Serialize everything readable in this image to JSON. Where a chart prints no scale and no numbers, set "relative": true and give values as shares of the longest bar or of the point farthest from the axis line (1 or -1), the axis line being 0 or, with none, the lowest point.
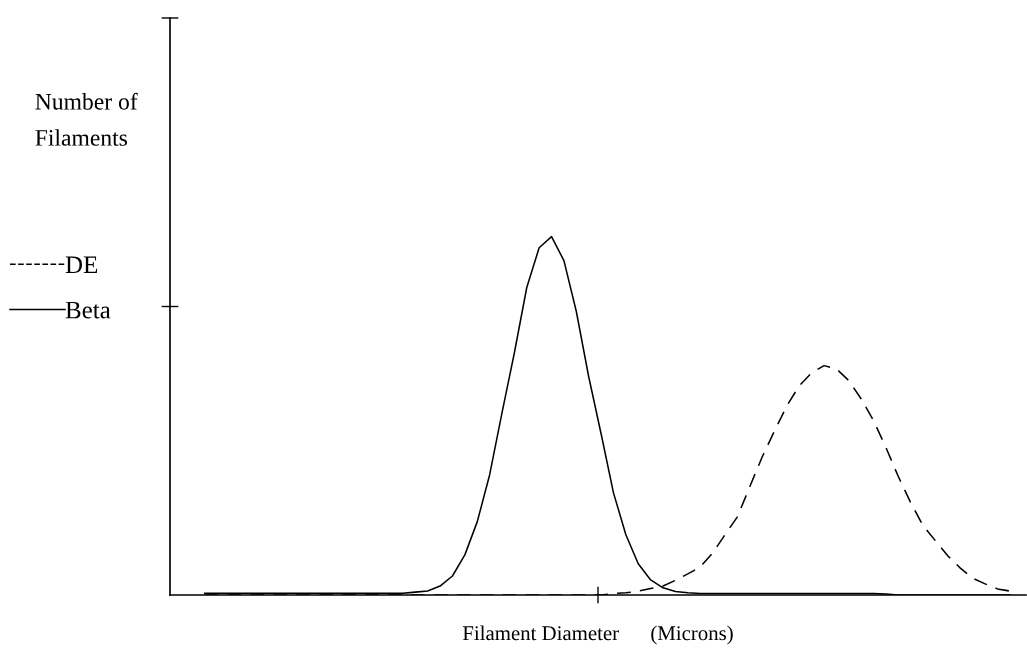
{
  "chart_data": {
    "type": "line",
    "relative": true,
    "xlabel": "Filament Diameter      (Microns)",
    "ylabel": "Number of\nFilaments",
    "legend": "left",
    "marker": "none",
    "categories": [
      null,
      null,
      null,
      null,
      null,
      null,
      null,
      null,
      null,
      null,
      null,
      null,
      null,
      null,
      null,
      null,
      null,
      null,
      null,
      null,
      null,
      null,
      null,
      null,
      null,
      null,
      null,
      null,
      null,
      null,
      null,
      null,
      null,
      null,
      null,
      null,
      null,
      null,
      null,
      null,
      null,
      null,
      null,
      null,
      null,
      null,
      null,
      null,
      null,
      null,
      null,
      null,
      null,
      null,
      null,
      null,
      null,
      null,
      null,
      null,
      null,
      null,
      null,
      null,
      null,
      null
    ],
    "series": [
      {
        "name": "DE",
        "color": "#000000",
        "line_style": "dashed",
        "values": [
          0,
          0,
          0,
          0,
          0,
          0,
          0,
          0,
          0,
          0,
          0,
          0,
          0,
          0,
          0,
          0,
          0,
          0,
          0,
          0,
          0,
          0,
          0,
          0,
          0,
          0,
          0,
          0,
          0,
          0,
          0,
          0,
          0,
          0.004,
          0.006,
          0.011,
          0.018,
          0.025,
          0.041,
          0.059,
          0.078,
          0.117,
          0.168,
          0.218,
          0.302,
          0.385,
          0.458,
          0.528,
          0.584,
          0.62,
          0.64,
          0.631,
          0.598,
          0.547,
          0.486,
          0.411,
          0.33,
          0.257,
          0.193,
          0.151,
          0.109,
          0.075,
          0.047,
          0.031,
          0.017,
          0.011
        ]
      },
      {
        "name": "Beta",
        "color": "#000000",
        "line_style": "solid",
        "values": [
          0.005,
          0.005,
          0.005,
          0.005,
          0.005,
          0.005,
          0.005,
          0.005,
          0.005,
          0.005,
          0.005,
          0.005,
          0.005,
          0.005,
          0.005,
          0.005,
          0.005,
          0.008,
          0.011,
          0.025,
          0.053,
          0.112,
          0.204,
          0.335,
          0.508,
          0.676,
          0.858,
          0.969,
          1,
          0.933,
          0.791,
          0.609,
          0.45,
          0.285,
          0.168,
          0.087,
          0.042,
          0.02,
          0.01,
          0.006,
          0.004,
          0.004,
          0.004,
          0.004,
          0.004,
          0.004,
          0.004,
          0.004,
          0.004,
          0.004,
          0.004,
          0.004,
          0.004,
          0.004,
          0.004,
          0.003,
          0,
          0,
          0,
          0,
          0,
          0,
          0,
          0,
          0,
          0
        ]
      }
    ]
  }
}
